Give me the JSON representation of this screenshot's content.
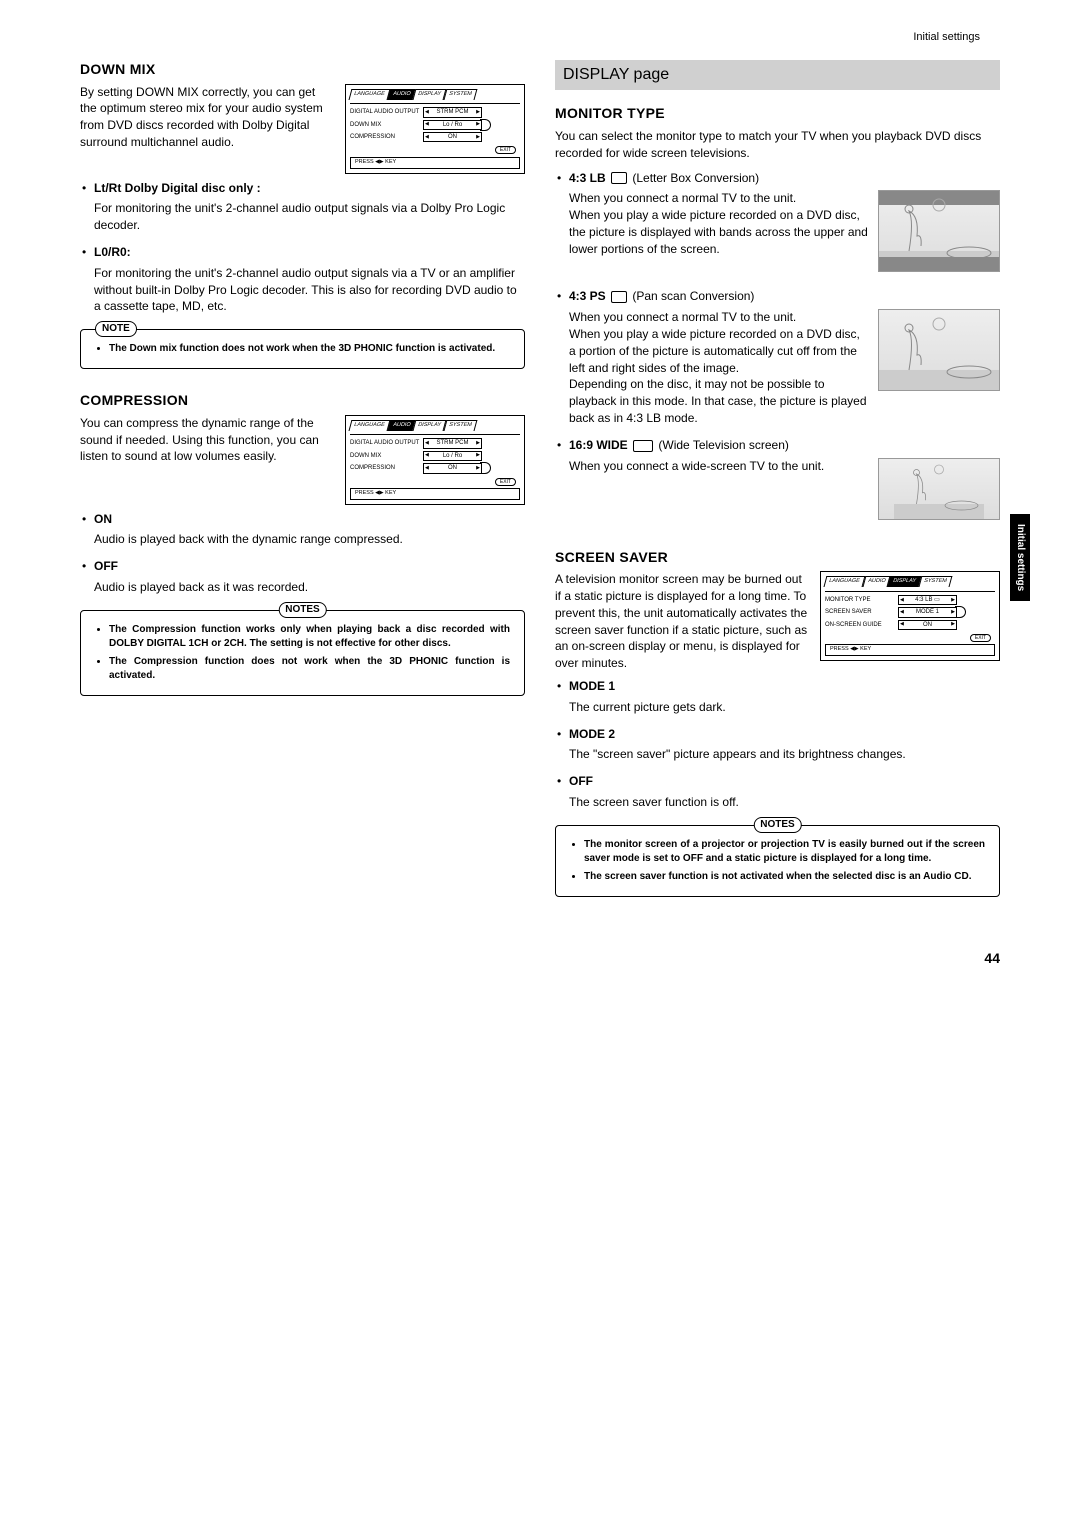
{
  "header": {
    "section": "Initial settings"
  },
  "left": {
    "downmix": {
      "title": "DOWN MIX",
      "intro": "By setting DOWN MIX correctly, you can get the optimum stereo mix for your audio system from DVD discs recorded with Dolby Digital surround multichannel audio.",
      "menu": {
        "tabs": [
          "LANGUAGE",
          "AUDIO",
          "DISPLAY",
          "SYSTEM"
        ],
        "active": 1,
        "rows": [
          {
            "k": "DIGITAL AUDIO OUTPUT",
            "v": "STRM PCM",
            "hl": false
          },
          {
            "k": "DOWN MIX",
            "v": "Lo / Ro",
            "hl": true
          },
          {
            "k": "COMPRESSION",
            "v": "ON",
            "hl": false
          }
        ]
      },
      "items": [
        {
          "label": "Lt/Rt Dolby Digital disc only :",
          "desc": "For monitoring the unit's 2-channel audio output signals via a Dolby Pro Logic decoder."
        },
        {
          "label": "L0/R0:",
          "desc": "For monitoring the unit's 2-channel audio output signals via a TV or an amplifier without built-in Dolby Pro Logic decoder. This is also for recording DVD audio to a cassette tape, MD, etc."
        }
      ],
      "note": {
        "title": "NOTE",
        "items": [
          "The Down mix function does not work when the 3D PHONIC function is activated."
        ]
      }
    },
    "compression": {
      "title": "COMPRESSION",
      "intro": "You can compress the dynamic range of the sound if needed. Using this function, you can listen to sound at low volumes easily.",
      "menu": {
        "tabs": [
          "LANGUAGE",
          "AUDIO",
          "DISPLAY",
          "SYSTEM"
        ],
        "active": 1,
        "rows": [
          {
            "k": "DIGITAL AUDIO OUTPUT",
            "v": "STRM PCM",
            "hl": false
          },
          {
            "k": "DOWN MIX",
            "v": "Lo / Ro",
            "hl": false
          },
          {
            "k": "COMPRESSION",
            "v": "ON",
            "hl": true
          }
        ]
      },
      "items": [
        {
          "label": "ON",
          "desc": "Audio is played back with the dynamic range compressed."
        },
        {
          "label": "OFF",
          "desc": "Audio is played back as it was recorded."
        }
      ],
      "note": {
        "title": "NOTES",
        "items": [
          "The Compression function works only when playing back a disc recorded with DOLBY DIGITAL 1CH or 2CH. The setting is not effective for other discs.",
          "The Compression function does not work when the 3D PHONIC function is activated."
        ]
      }
    }
  },
  "right": {
    "display_band": "DISPLAY page",
    "monitor": {
      "title": "MONITOR TYPE",
      "intro": "You can select the monitor type to match your TV when you playback DVD discs recorded for wide screen televisions.",
      "items": [
        {
          "label": "4:3 LB",
          "suffix": " (Letter Box Conversion)",
          "desc": "When you connect a normal TV to the unit.\nWhen you play a wide picture recorded on a DVD disc, the picture is displayed with bands across the upper and lower portions of the screen.",
          "illus": "letterbox"
        },
        {
          "label": "4:3 PS",
          "suffix": " (Pan scan Conversion)",
          "desc": "When you connect a normal TV to the unit.\nWhen you play a wide picture recorded on a DVD disc, a portion of the picture is automatically cut off from the left and right sides of the image.\nDepending on the disc, it may not be possible to playback in this mode. In that case, the picture is played back as in 4:3 LB mode.",
          "illus": "pan",
          "tvafter": true
        },
        {
          "label": "16:9 WIDE",
          "suffix": " (Wide Television screen)",
          "desc": "When you connect a wide-screen TV to the unit.",
          "illus": "wide"
        }
      ]
    },
    "saver": {
      "title": "SCREEN SAVER",
      "intro": "A television monitor screen may be burned out if a static picture is displayed for a long time.  To prevent this, the unit automatically activates the screen saver function if a static picture, such as an on-screen display or menu, is displayed for over minutes.",
      "menu": {
        "tabs": [
          "LANGUAGE",
          "AUDIO",
          "DISPLAY",
          "SYSTEM"
        ],
        "active": 2,
        "rows": [
          {
            "k": "MONITOR TYPE",
            "v": "4:3 LB ▭",
            "hl": false
          },
          {
            "k": "SCREEN SAVER",
            "v": "MODE 1",
            "hl": true
          },
          {
            "k": "ON-SCREEN GUIDE",
            "v": "ON",
            "hl": false
          }
        ]
      },
      "items": [
        {
          "label": "MODE 1",
          "desc": "The current picture gets dark."
        },
        {
          "label": "MODE 2",
          "desc": "The \"screen saver\" picture appears and its brightness changes."
        },
        {
          "label": "OFF",
          "desc": "The screen saver function is off."
        }
      ],
      "note": {
        "title": "NOTES",
        "items": [
          "The monitor screen of a projector or projection TV is easily burned out if the screen saver mode is set to OFF and a static picture is displayed for a long time.",
          "The screen saver function is not activated when the selected disc is an Audio CD."
        ]
      }
    }
  },
  "sideTab": "Initial settings",
  "pageNum": "44",
  "menuCommon": {
    "exit": "EXIT",
    "press": "PRESS ◀▶ KEY"
  }
}
